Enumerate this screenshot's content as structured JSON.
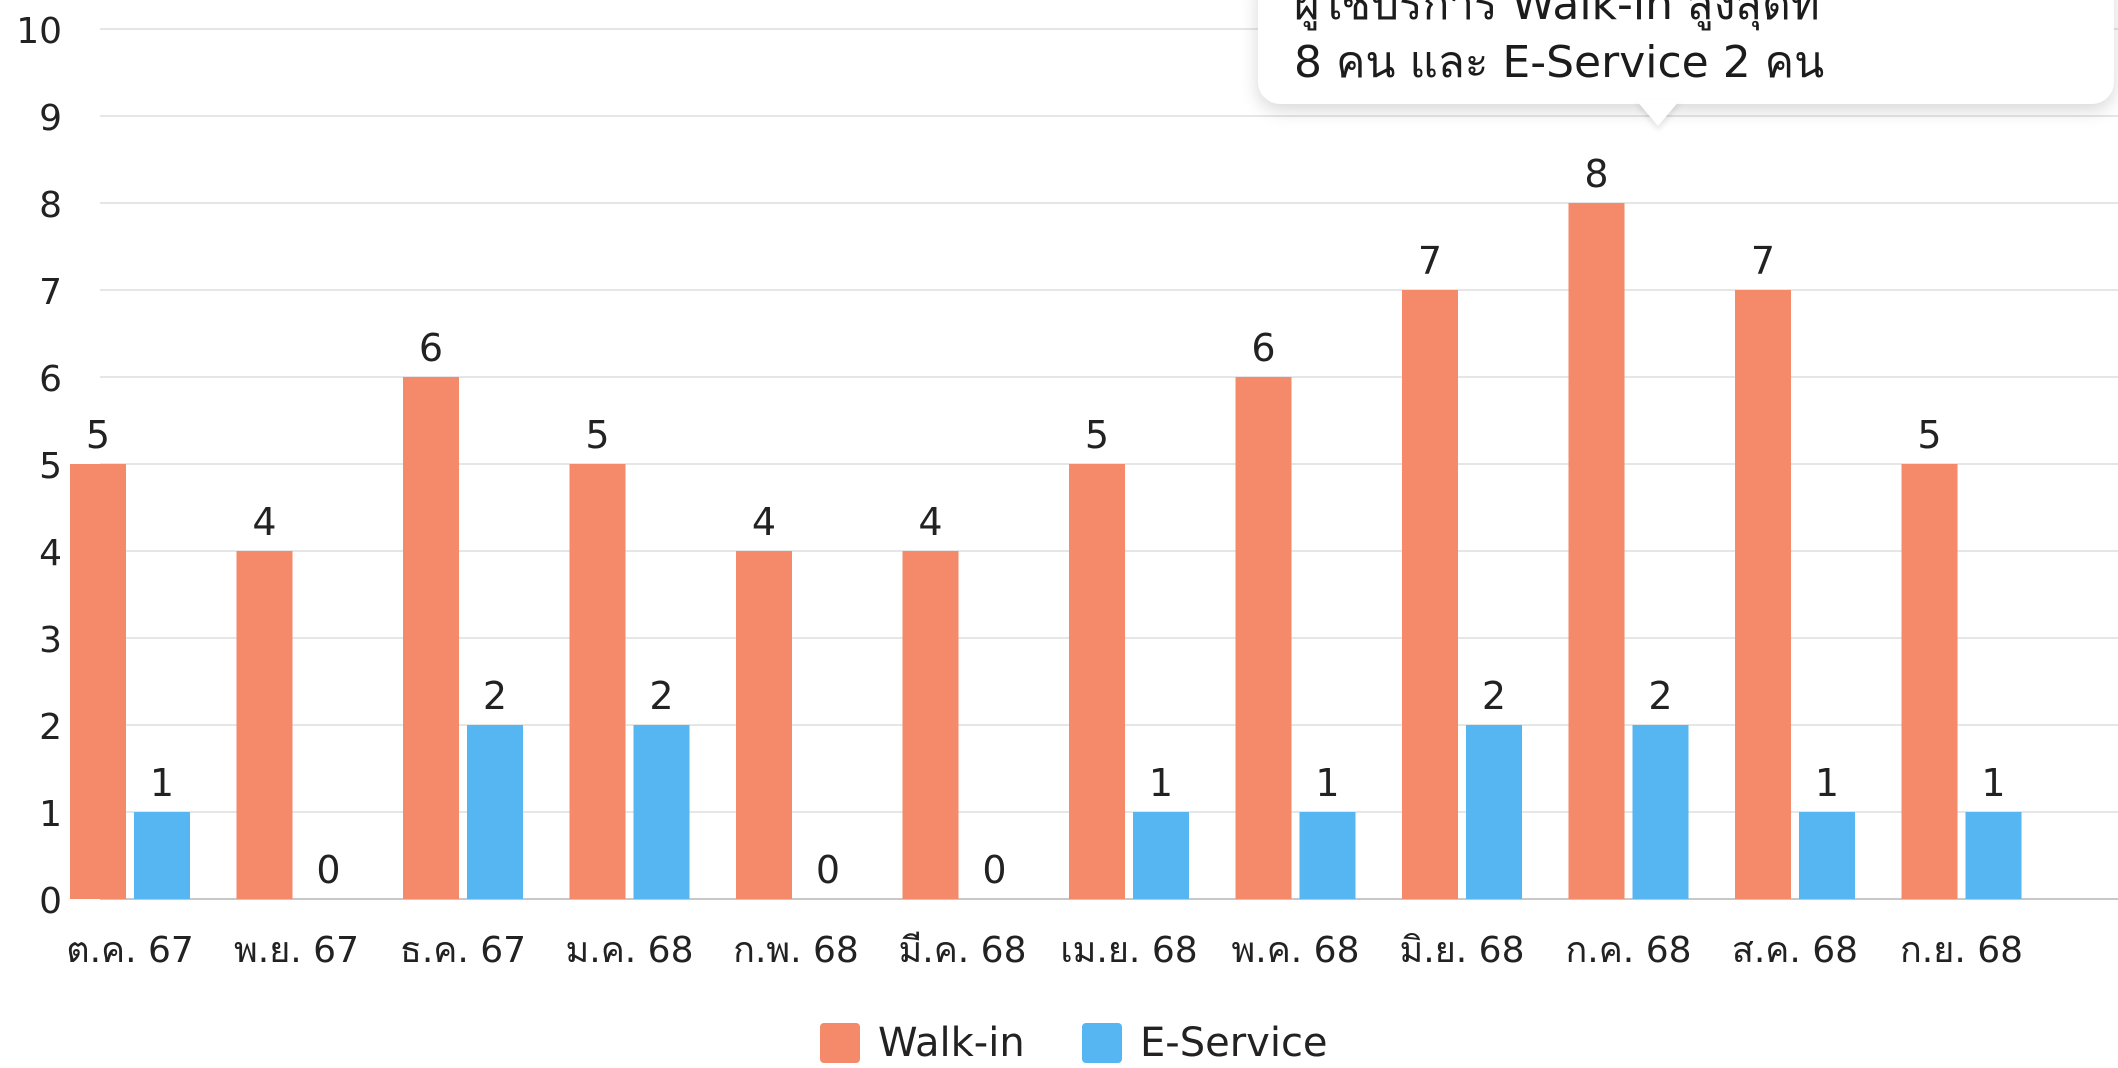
{
  "chart_data": {
    "type": "bar",
    "categories": [
      "ต.ค. 67",
      "พ.ย. 67",
      "ธ.ค. 67",
      "ม.ค. 68",
      "ก.พ. 68",
      "มี.ค. 68",
      "เม.ย. 68",
      "พ.ค. 68",
      "มิ.ย. 68",
      "ก.ค. 68",
      "ส.ค. 68",
      "ก.ย. 68"
    ],
    "series": [
      {
        "name": "Walk-in",
        "color": "#F58A6A",
        "values": [
          5,
          4,
          6,
          5,
          4,
          4,
          5,
          6,
          7,
          8,
          7,
          5
        ]
      },
      {
        "name": "E-Service",
        "color": "#56B6F2",
        "values": [
          1,
          0,
          2,
          2,
          0,
          0,
          1,
          1,
          2,
          2,
          1,
          1
        ]
      }
    ],
    "ylim": [
      0,
      10
    ],
    "yticks": [
      0,
      1,
      2,
      3,
      4,
      5,
      6,
      7,
      8,
      9,
      10
    ],
    "grid": true,
    "legend_position": "bottom-center",
    "title": "",
    "xlabel": "",
    "ylabel": ""
  },
  "tooltip": {
    "line1": "ผู้ใช้บริการ Walk-in สูงสุดที่",
    "line2": "8 คน และ E-Service 2 คน"
  }
}
